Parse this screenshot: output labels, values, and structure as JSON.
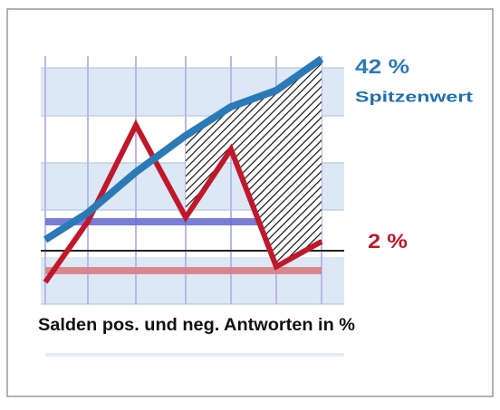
{
  "chart_data": {
    "type": "line",
    "caption": "Salden pos. und neg. Antworten in %",
    "annotation": "Spitzenwert",
    "categories": [
      null,
      null,
      null,
      null,
      null,
      null,
      null
    ],
    "ylim": [
      -11.5,
      43
    ],
    "series": [
      {
        "name": null,
        "color": "#2a7ab8",
        "values": [
          2.4,
          8.3,
          17.2,
          25.2,
          31.5,
          35.1,
          42
        ],
        "value_labels": [
          null,
          null,
          null,
          null,
          null,
          null,
          "42 %"
        ]
      },
      {
        "name": null,
        "color": "#c0182a",
        "values": [
          -6.9,
          6.4,
          27.5,
          7.3,
          22.2,
          -3.5,
          2
        ],
        "value_labels": [
          null,
          null,
          null,
          null,
          null,
          null,
          "2 %"
        ]
      }
    ]
  }
}
